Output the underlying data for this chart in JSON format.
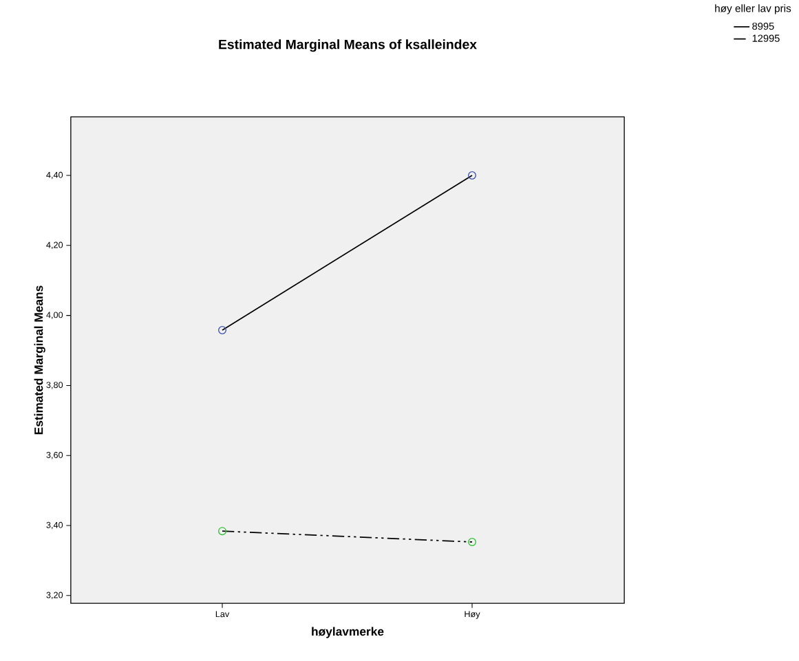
{
  "chart_data": {
    "type": "line",
    "title": "Estimated Marginal Means of ksalleindex",
    "xlabel": "høylavmerke",
    "ylabel": "Estimated Marginal Means",
    "legend_title": "høy eller lav pris",
    "categories": [
      "Lav",
      "Høy"
    ],
    "series": [
      {
        "name": "8995",
        "color": "#000000",
        "colors": [
          "#3b4fb0",
          "#3b4fb0"
        ],
        "line_style": "solid",
        "values": [
          3.958,
          4.4
        ]
      },
      {
        "name": "12995",
        "color": "#000000",
        "colors": [
          "#2ec234",
          "#2ec234"
        ],
        "line_style": "dashed",
        "values": [
          3.384,
          3.353
        ]
      }
    ],
    "ylim": [
      3.178,
      4.567
    ],
    "yticks": [
      {
        "value": 3.2,
        "label": "3,20"
      },
      {
        "value": 3.4,
        "label": "3,40"
      },
      {
        "value": 3.6,
        "label": "3,60"
      },
      {
        "value": 3.8,
        "label": "3,80"
      },
      {
        "value": 4.0,
        "label": "4,00"
      },
      {
        "value": 4.2,
        "label": "4,20"
      },
      {
        "value": 4.4,
        "label": "4,40"
      }
    ],
    "marker": "circle",
    "legend": "top right"
  }
}
